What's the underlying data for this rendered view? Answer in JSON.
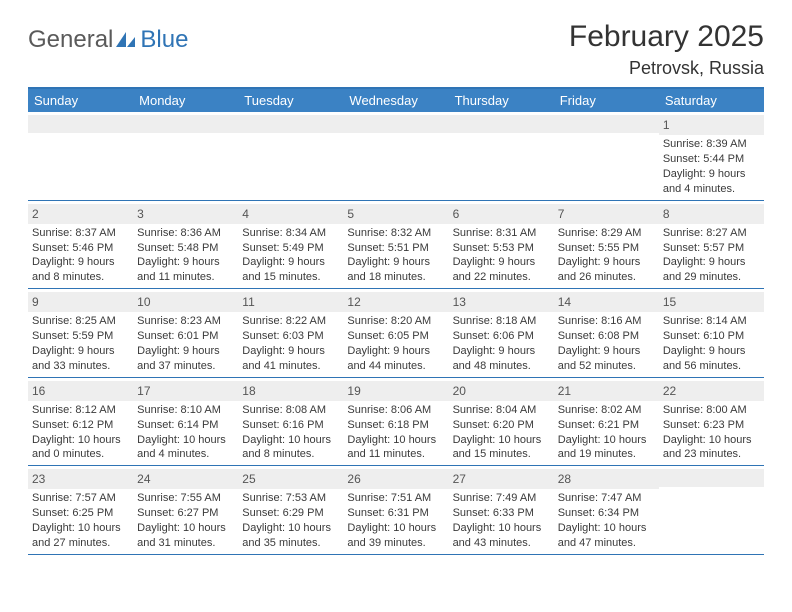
{
  "logo": {
    "text_general": "General",
    "text_blue": "Blue",
    "accent_color": "#2f74b5"
  },
  "title": "February 2025",
  "location": "Petrovsk, Russia",
  "weekdays": [
    "Sunday",
    "Monday",
    "Tuesday",
    "Wednesday",
    "Thursday",
    "Friday",
    "Saturday"
  ],
  "colors": {
    "header_bar": "#3b82c4",
    "rule": "#2f74b5",
    "band": "#eeeeee",
    "text": "#3a3a3a",
    "title_text": "#333333",
    "background": "#ffffff"
  },
  "typography": {
    "title_fontsize": 30,
    "location_fontsize": 18,
    "weekday_fontsize": 13,
    "daynum_fontsize": 12,
    "body_fontsize": 11
  },
  "weeks": [
    [
      null,
      null,
      null,
      null,
      null,
      null,
      {
        "n": "1",
        "sunrise": "Sunrise: 8:39 AM",
        "sunset": "Sunset: 5:44 PM",
        "daylight": "Daylight: 9 hours and 4 minutes."
      }
    ],
    [
      {
        "n": "2",
        "sunrise": "Sunrise: 8:37 AM",
        "sunset": "Sunset: 5:46 PM",
        "daylight": "Daylight: 9 hours and 8 minutes."
      },
      {
        "n": "3",
        "sunrise": "Sunrise: 8:36 AM",
        "sunset": "Sunset: 5:48 PM",
        "daylight": "Daylight: 9 hours and 11 minutes."
      },
      {
        "n": "4",
        "sunrise": "Sunrise: 8:34 AM",
        "sunset": "Sunset: 5:49 PM",
        "daylight": "Daylight: 9 hours and 15 minutes."
      },
      {
        "n": "5",
        "sunrise": "Sunrise: 8:32 AM",
        "sunset": "Sunset: 5:51 PM",
        "daylight": "Daylight: 9 hours and 18 minutes."
      },
      {
        "n": "6",
        "sunrise": "Sunrise: 8:31 AM",
        "sunset": "Sunset: 5:53 PM",
        "daylight": "Daylight: 9 hours and 22 minutes."
      },
      {
        "n": "7",
        "sunrise": "Sunrise: 8:29 AM",
        "sunset": "Sunset: 5:55 PM",
        "daylight": "Daylight: 9 hours and 26 minutes."
      },
      {
        "n": "8",
        "sunrise": "Sunrise: 8:27 AM",
        "sunset": "Sunset: 5:57 PM",
        "daylight": "Daylight: 9 hours and 29 minutes."
      }
    ],
    [
      {
        "n": "9",
        "sunrise": "Sunrise: 8:25 AM",
        "sunset": "Sunset: 5:59 PM",
        "daylight": "Daylight: 9 hours and 33 minutes."
      },
      {
        "n": "10",
        "sunrise": "Sunrise: 8:23 AM",
        "sunset": "Sunset: 6:01 PM",
        "daylight": "Daylight: 9 hours and 37 minutes."
      },
      {
        "n": "11",
        "sunrise": "Sunrise: 8:22 AM",
        "sunset": "Sunset: 6:03 PM",
        "daylight": "Daylight: 9 hours and 41 minutes."
      },
      {
        "n": "12",
        "sunrise": "Sunrise: 8:20 AM",
        "sunset": "Sunset: 6:05 PM",
        "daylight": "Daylight: 9 hours and 44 minutes."
      },
      {
        "n": "13",
        "sunrise": "Sunrise: 8:18 AM",
        "sunset": "Sunset: 6:06 PM",
        "daylight": "Daylight: 9 hours and 48 minutes."
      },
      {
        "n": "14",
        "sunrise": "Sunrise: 8:16 AM",
        "sunset": "Sunset: 6:08 PM",
        "daylight": "Daylight: 9 hours and 52 minutes."
      },
      {
        "n": "15",
        "sunrise": "Sunrise: 8:14 AM",
        "sunset": "Sunset: 6:10 PM",
        "daylight": "Daylight: 9 hours and 56 minutes."
      }
    ],
    [
      {
        "n": "16",
        "sunrise": "Sunrise: 8:12 AM",
        "sunset": "Sunset: 6:12 PM",
        "daylight": "Daylight: 10 hours and 0 minutes."
      },
      {
        "n": "17",
        "sunrise": "Sunrise: 8:10 AM",
        "sunset": "Sunset: 6:14 PM",
        "daylight": "Daylight: 10 hours and 4 minutes."
      },
      {
        "n": "18",
        "sunrise": "Sunrise: 8:08 AM",
        "sunset": "Sunset: 6:16 PM",
        "daylight": "Daylight: 10 hours and 8 minutes."
      },
      {
        "n": "19",
        "sunrise": "Sunrise: 8:06 AM",
        "sunset": "Sunset: 6:18 PM",
        "daylight": "Daylight: 10 hours and 11 minutes."
      },
      {
        "n": "20",
        "sunrise": "Sunrise: 8:04 AM",
        "sunset": "Sunset: 6:20 PM",
        "daylight": "Daylight: 10 hours and 15 minutes."
      },
      {
        "n": "21",
        "sunrise": "Sunrise: 8:02 AM",
        "sunset": "Sunset: 6:21 PM",
        "daylight": "Daylight: 10 hours and 19 minutes."
      },
      {
        "n": "22",
        "sunrise": "Sunrise: 8:00 AM",
        "sunset": "Sunset: 6:23 PM",
        "daylight": "Daylight: 10 hours and 23 minutes."
      }
    ],
    [
      {
        "n": "23",
        "sunrise": "Sunrise: 7:57 AM",
        "sunset": "Sunset: 6:25 PM",
        "daylight": "Daylight: 10 hours and 27 minutes."
      },
      {
        "n": "24",
        "sunrise": "Sunrise: 7:55 AM",
        "sunset": "Sunset: 6:27 PM",
        "daylight": "Daylight: 10 hours and 31 minutes."
      },
      {
        "n": "25",
        "sunrise": "Sunrise: 7:53 AM",
        "sunset": "Sunset: 6:29 PM",
        "daylight": "Daylight: 10 hours and 35 minutes."
      },
      {
        "n": "26",
        "sunrise": "Sunrise: 7:51 AM",
        "sunset": "Sunset: 6:31 PM",
        "daylight": "Daylight: 10 hours and 39 minutes."
      },
      {
        "n": "27",
        "sunrise": "Sunrise: 7:49 AM",
        "sunset": "Sunset: 6:33 PM",
        "daylight": "Daylight: 10 hours and 43 minutes."
      },
      {
        "n": "28",
        "sunrise": "Sunrise: 7:47 AM",
        "sunset": "Sunset: 6:34 PM",
        "daylight": "Daylight: 10 hours and 47 minutes."
      },
      null
    ]
  ]
}
